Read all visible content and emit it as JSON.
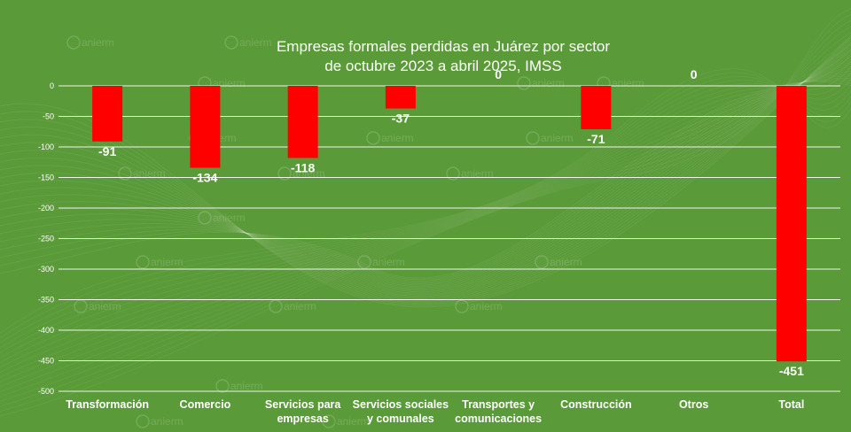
{
  "chart_data": {
    "type": "bar",
    "title_line1": "Empresas formales perdidas en Juárez por sector",
    "title_line2": "de octubre 2023 a abril 2025, IMSS",
    "categories": [
      [
        "Transformación"
      ],
      [
        "Comercio"
      ],
      [
        "Servicios para",
        "empresas"
      ],
      [
        "Servicios sociales",
        "y comunales"
      ],
      [
        "Transportes y",
        "comunicaciones"
      ],
      [
        "Construcción"
      ],
      [
        "Otros"
      ],
      [
        "Total"
      ]
    ],
    "values": [
      -91,
      -134,
      -118,
      -37,
      0,
      -71,
      0,
      -451
    ],
    "y_ticks": [
      0,
      -50,
      -100,
      -150,
      -200,
      -250,
      -300,
      -350,
      -400,
      -450,
      -500
    ],
    "ylim": [
      -500,
      0
    ],
    "grid": true,
    "legend": "none"
  },
  "colors": {
    "background": "#5a9a38",
    "bar": "#ff0000",
    "grid": "#ffffff",
    "text": "#ffffff"
  },
  "watermark": {
    "text": "anierm"
  }
}
